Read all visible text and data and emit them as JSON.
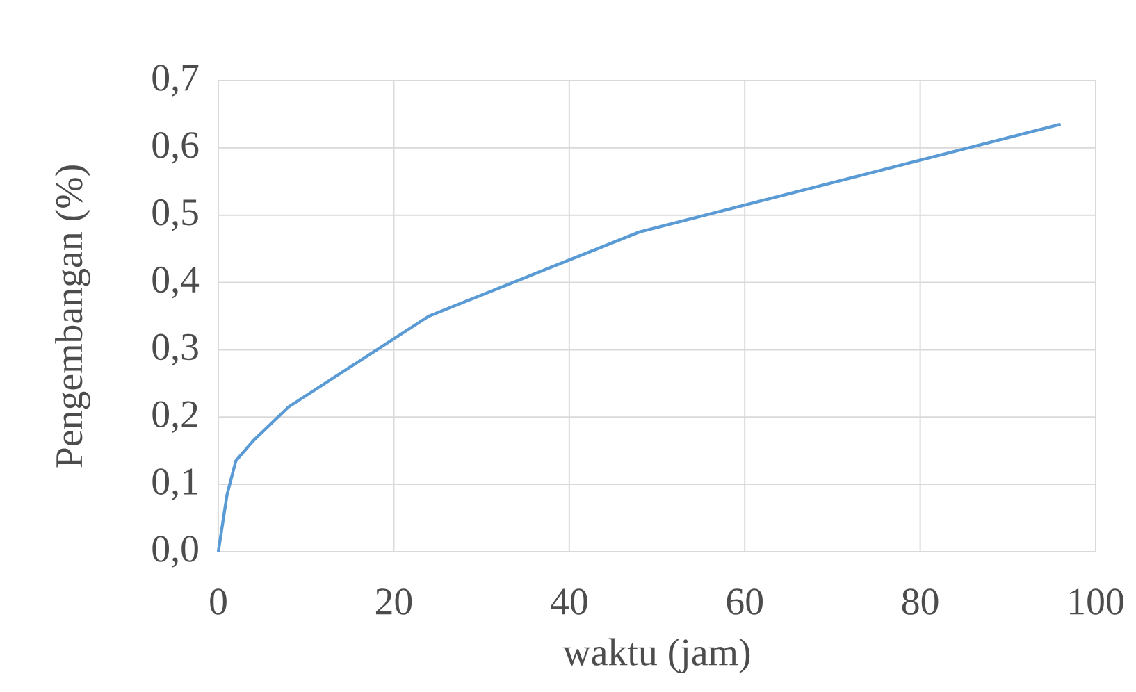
{
  "chart_data": {
    "type": "line",
    "xlabel": "waktu (jam)",
    "ylabel": "Pengembangan (%)",
    "series": [
      {
        "color": "#5b9bd5",
        "x": [
          0,
          1,
          2,
          4,
          8,
          24,
          48,
          72,
          96
        ],
        "values": [
          0,
          0.085,
          0.135,
          0.165,
          0.215,
          0.35,
          0.475,
          0.555,
          0.635
        ]
      }
    ],
    "xlim": [
      0,
      100
    ],
    "xticks": [
      0,
      20,
      40,
      60,
      80,
      100
    ],
    "ylim": [
      0,
      0.7
    ],
    "yticks": [
      {
        "value": 0,
        "label": "0,0"
      },
      {
        "value": 0.1,
        "label": "0,1"
      },
      {
        "value": 0.2,
        "label": "0,2"
      },
      {
        "value": 0.3,
        "label": "0,3"
      },
      {
        "value": 0.4,
        "label": "0,4"
      },
      {
        "value": 0.5,
        "label": "0,5"
      },
      {
        "value": 0.6,
        "label": "0,6"
      },
      {
        "value": 0.7,
        "label": "0,7"
      }
    ],
    "grid": true,
    "marker": "none",
    "line_style": "solid"
  }
}
